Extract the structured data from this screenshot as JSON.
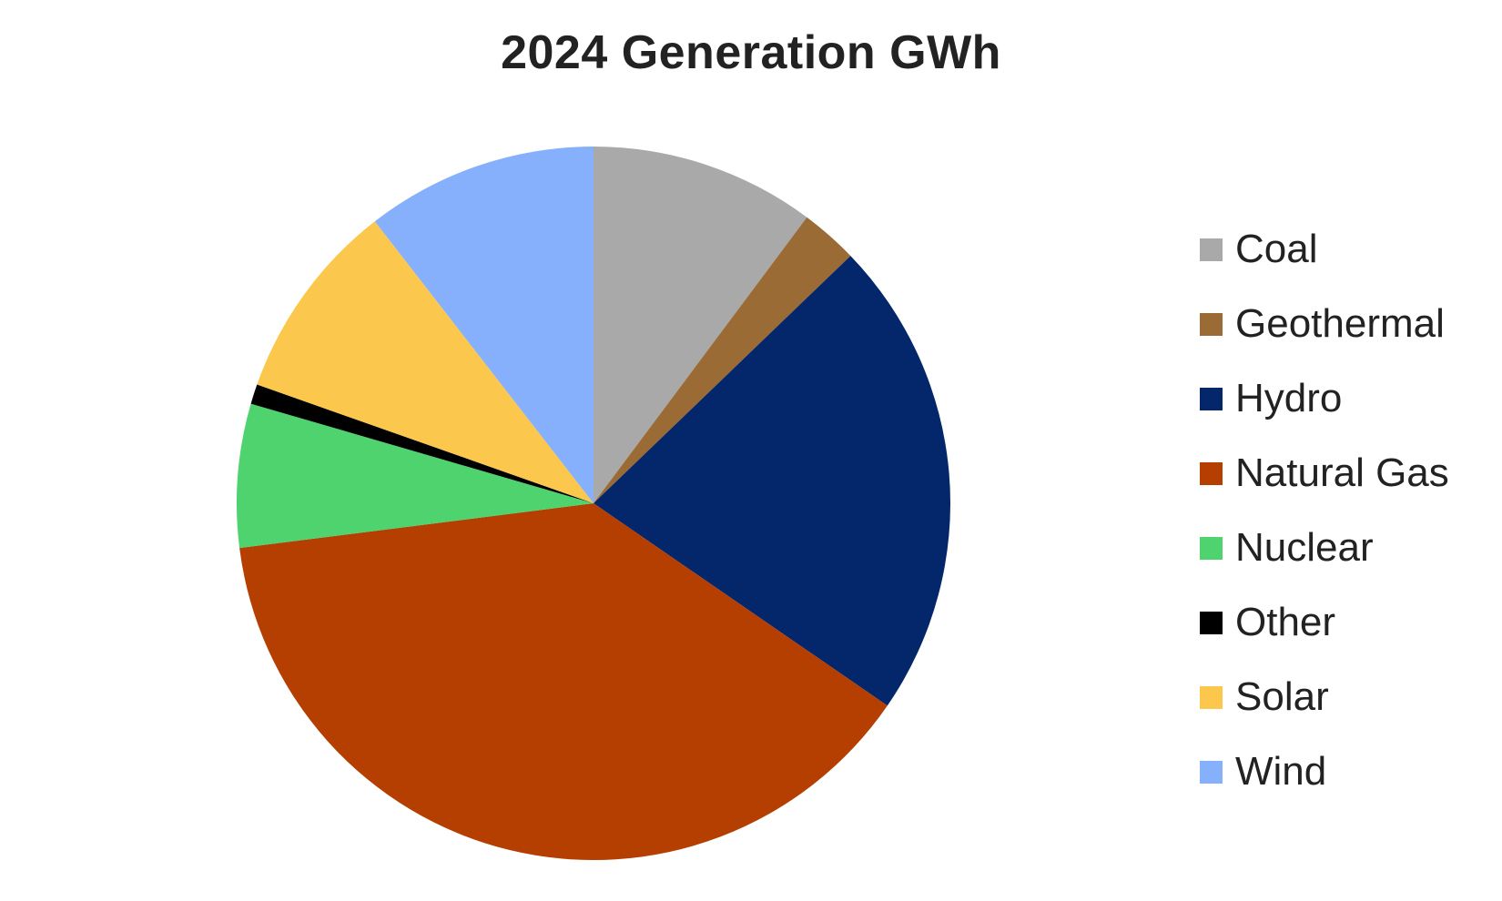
{
  "chart_data": {
    "type": "pie",
    "title": "2024 Generation GWh",
    "start_angle_deg": 0,
    "direction": "clockwise",
    "legend_position": "right",
    "slices": [
      {
        "label": "Coal",
        "value": 10.2,
        "color": "#a9a9a9"
      },
      {
        "label": "Geothermal",
        "value": 2.6,
        "color": "#9a6b35"
      },
      {
        "label": "Hydro",
        "value": 21.8,
        "color": "#04266b"
      },
      {
        "label": "Natural Gas",
        "value": 38.4,
        "color": "#b53f00"
      },
      {
        "label": "Nuclear",
        "value": 6.5,
        "color": "#4fd36f"
      },
      {
        "label": "Other",
        "value": 0.9,
        "color": "#000000"
      },
      {
        "label": "Solar",
        "value": 9.1,
        "color": "#fbc74c"
      },
      {
        "label": "Wind",
        "value": 10.5,
        "color": "#87b0fc"
      }
    ]
  }
}
